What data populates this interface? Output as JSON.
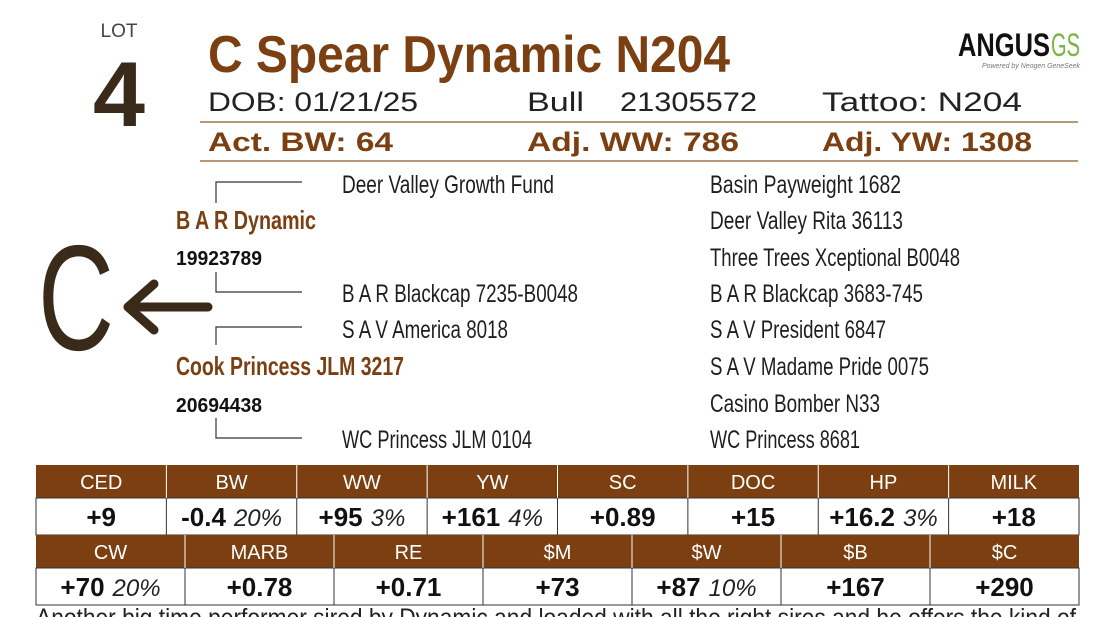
{
  "lot": {
    "label": "LOT",
    "number": "4"
  },
  "name": "C Spear Dynamic N204",
  "logo": {
    "brand": "ANGUS",
    "suffix": "GS",
    "tagline": "Powered by Neogen GeneSeek"
  },
  "info": {
    "dob": "DOB: 01/21/25",
    "sex": "Bull",
    "registration": "21305572",
    "tattoo": "Tattoo: N204"
  },
  "weights": [
    "Act. BW: 64",
    "Adj. WW: 786",
    "Adj. YW: 1308"
  ],
  "brand_mark": "C",
  "pedigree": {
    "sire": {
      "name": "B A R Dynamic",
      "registration": "19923789"
    },
    "dam": {
      "name": "Cook Princess JLM 3217",
      "registration": "20694438"
    },
    "grandparents": [
      "Deer Valley Growth Fund",
      "B A R Blackcap 7235-B0048",
      "S A V America 8018",
      "WC Princess JLM 0104"
    ],
    "great_grandparents": [
      "Basin Payweight 1682",
      "Deer Valley Rita 36113",
      "Three Trees Xceptional B0048",
      "B A R Blackcap 3683-745",
      "S A V President 6847",
      "S A V Madame Pride 0075",
      "Casino Bomber N33",
      "WC Princess 8681"
    ]
  },
  "epd_rows": [
    [
      {
        "trait": "CED",
        "value": "+9"
      },
      {
        "trait": "BW",
        "value": "-0.4",
        "accuracy": "20%"
      },
      {
        "trait": "WW",
        "value": "+95",
        "accuracy": "3%"
      },
      {
        "trait": "YW",
        "value": "+161",
        "accuracy": "4%"
      },
      {
        "trait": "SC",
        "value": "+0.89"
      },
      {
        "trait": "DOC",
        "value": "+15"
      },
      {
        "trait": "HP",
        "value": "+16.2",
        "accuracy": "3%"
      },
      {
        "trait": "MILK",
        "value": "+18"
      }
    ],
    [
      {
        "trait": "CW",
        "value": "+70",
        "accuracy": "20%"
      },
      {
        "trait": "MARB",
        "value": "+0.78"
      },
      {
        "trait": "RE",
        "value": "+0.71"
      },
      {
        "trait": "$M",
        "value": "+73"
      },
      {
        "trait": "$W",
        "value": "+87",
        "accuracy": "10%"
      },
      {
        "trait": "$B",
        "value": "+167"
      },
      {
        "trait": "$C",
        "value": "+290"
      }
    ]
  ],
  "comment": "Another big time performer sired by Dynamic and loaded with all the right sires and he offers the kind of"
}
